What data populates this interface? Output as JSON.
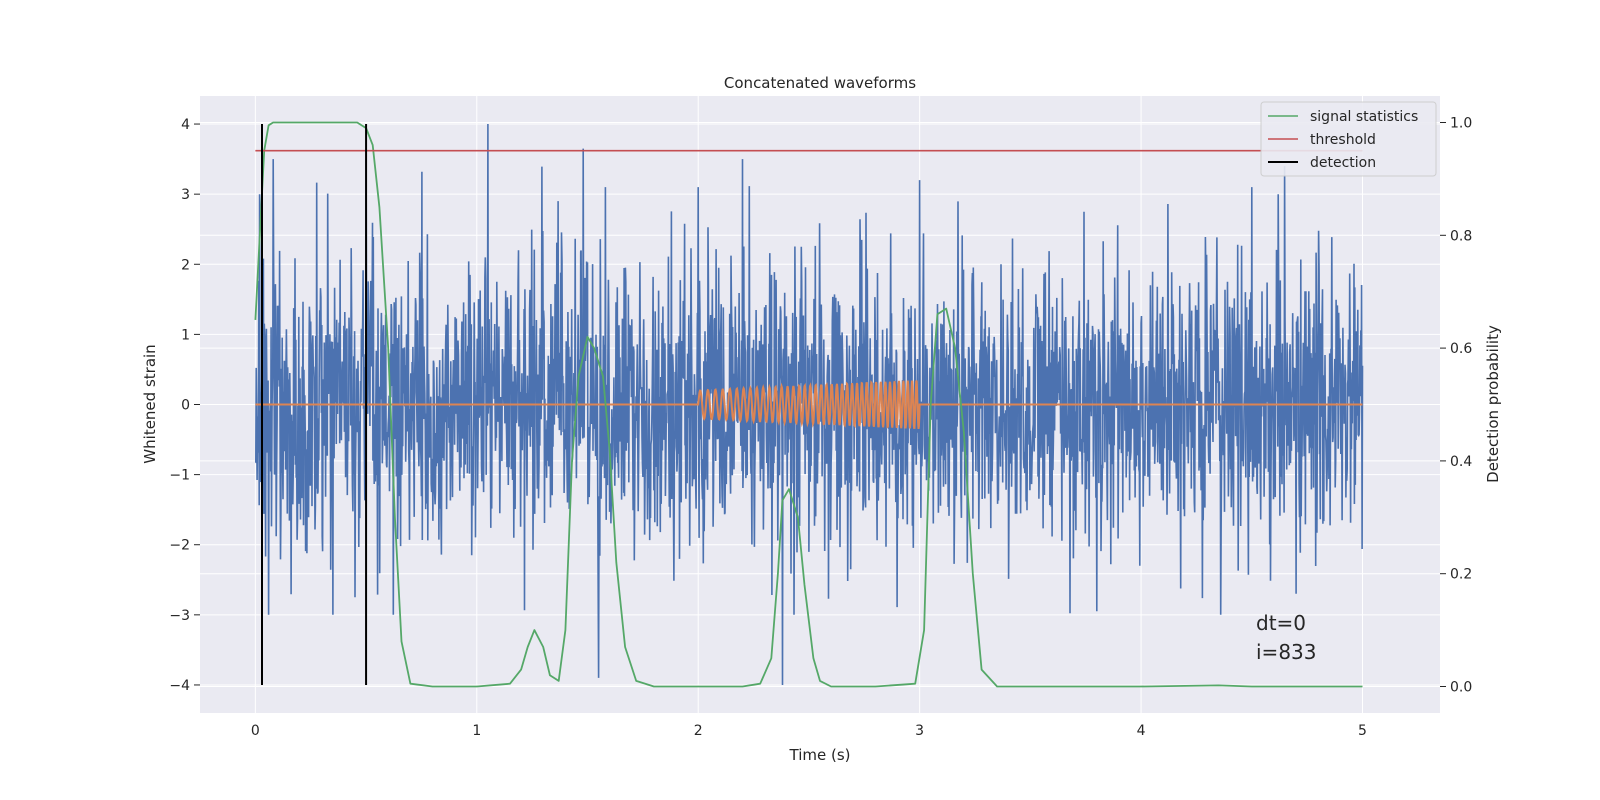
{
  "chart_data": {
    "type": "line",
    "title": "Concatenated waveforms",
    "xlabel": "Time (s)",
    "ylabel": "Whitened strain",
    "y2label": "Detection probability",
    "xlim": [
      -0.25,
      5.35
    ],
    "ylim": [
      -4.4,
      4.4
    ],
    "y2lim": [
      -0.047,
      1.047
    ],
    "xticks": [
      0,
      1,
      2,
      3,
      4,
      5
    ],
    "yticks": [
      -4,
      -3,
      -2,
      -1,
      0,
      1,
      2,
      3,
      4
    ],
    "y2ticks": [
      0.0,
      0.2,
      0.4,
      0.6,
      0.8,
      1.0
    ],
    "xtick_labels": [
      "0",
      "1",
      "2",
      "3",
      "4",
      "5"
    ],
    "ytick_labels": [
      "−4",
      "−3",
      "−2",
      "−1",
      "0",
      "1",
      "2",
      "3",
      "4"
    ],
    "y2tick_labels": [
      "0.0",
      "0.2",
      "0.4",
      "0.6",
      "0.8",
      "1.0"
    ],
    "grid": true,
    "legend_position": "top-right",
    "colors": {
      "background": "#eaeaf2",
      "grid": "#ffffff",
      "strain": "#4c72b0",
      "waveform": "#dd8452",
      "statistic": "#55a868",
      "threshold": "#c44e52",
      "detection": "#000000"
    },
    "series": [
      {
        "name": "",
        "role": "whitened-strain",
        "x_range": [
          0,
          5
        ],
        "typical_amplitude": 1.0,
        "envelope": [
          -3.0,
          4.0
        ],
        "notable_peaks": [
          {
            "x": 0.02,
            "y": 3.0
          },
          {
            "x": 0.08,
            "y": 3.5
          },
          {
            "x": 0.5,
            "y": 3.5
          },
          {
            "x": 1.05,
            "y": 4.0
          },
          {
            "x": 1.48,
            "y": 3.65
          },
          {
            "x": 1.58,
            "y": 3.1
          },
          {
            "x": 2.0,
            "y": 3.1
          },
          {
            "x": 2.2,
            "y": 3.5
          },
          {
            "x": 3.0,
            "y": 3.2
          },
          {
            "x": 4.5,
            "y": 3.1
          },
          {
            "x": 4.62,
            "y": 3.0
          },
          {
            "x": 1.55,
            "y": -3.9
          },
          {
            "x": 2.38,
            "y": -4.0
          },
          {
            "x": 0.45,
            "y": -2.75
          },
          {
            "x": 3.8,
            "y": -2.95
          },
          {
            "x": 4.7,
            "y": -2.7
          }
        ]
      },
      {
        "name": "",
        "role": "injected-waveform",
        "x_range": [
          0,
          5
        ],
        "chirp_start": 2.0,
        "chirp_end": 3.0,
        "amplitude_start": 0.2,
        "amplitude_end": 0.35,
        "cycles": 40
      },
      {
        "name": "signal statistics",
        "axis": "right",
        "x": [
          0.0,
          0.02,
          0.04,
          0.06,
          0.08,
          0.12,
          0.2,
          0.3,
          0.4,
          0.46,
          0.5,
          0.53,
          0.56,
          0.6,
          0.63,
          0.66,
          0.7,
          0.8,
          1.0,
          1.15,
          1.2,
          1.23,
          1.26,
          1.3,
          1.33,
          1.37,
          1.4,
          1.43,
          1.46,
          1.5,
          1.53,
          1.57,
          1.6,
          1.63,
          1.67,
          1.72,
          1.8,
          2.0,
          2.2,
          2.28,
          2.33,
          2.36,
          2.38,
          2.41,
          2.45,
          2.48,
          2.52,
          2.55,
          2.6,
          2.8,
          2.98,
          3.02,
          3.05,
          3.08,
          3.12,
          3.16,
          3.2,
          3.24,
          3.28,
          3.35,
          3.6,
          4.0,
          4.35,
          4.5,
          4.8,
          5.0
        ],
        "values": [
          0.65,
          0.8,
          0.95,
          0.995,
          1.0,
          1.0,
          1.0,
          1.0,
          1.0,
          1.0,
          0.99,
          0.96,
          0.85,
          0.6,
          0.3,
          0.08,
          0.005,
          0.0,
          0.0,
          0.005,
          0.03,
          0.07,
          0.1,
          0.07,
          0.02,
          0.01,
          0.1,
          0.4,
          0.55,
          0.62,
          0.6,
          0.55,
          0.42,
          0.22,
          0.07,
          0.01,
          0.0,
          0.0,
          0.0,
          0.005,
          0.05,
          0.2,
          0.33,
          0.35,
          0.3,
          0.18,
          0.05,
          0.01,
          0.0,
          0.0,
          0.005,
          0.1,
          0.5,
          0.66,
          0.67,
          0.6,
          0.45,
          0.2,
          0.03,
          0.0,
          0.0,
          0.0,
          0.002,
          0.0,
          0.0,
          0.0
        ]
      },
      {
        "name": "threshold",
        "axis": "right",
        "value": 0.95,
        "x_range": [
          0,
          5
        ]
      },
      {
        "name": "detection",
        "axis": "left",
        "x": [
          0.03,
          0.5
        ],
        "y_range": [
          -4,
          4
        ]
      }
    ],
    "annotations": [
      "dt=0",
      "i=833"
    ]
  }
}
